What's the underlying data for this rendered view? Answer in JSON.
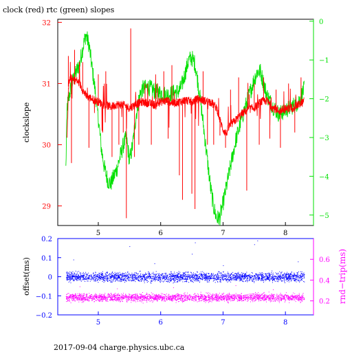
{
  "title": "clock (red) rtc (green) slopes",
  "footer": "2017-09-04 charge.physics.ubc.ca",
  "colors": {
    "clock": "#ff0000",
    "rtc": "#00e000",
    "offset": "#0000ff",
    "rndtrip": "#ff00ff",
    "axis": "#000000",
    "bottom_axis_text": "#0000ff"
  },
  "chart_data": [
    {
      "type": "line",
      "title": "clock (red) rtc (green) slopes",
      "xlim": [
        4.35,
        8.45
      ],
      "x_ticks": [
        5,
        6,
        7,
        8
      ],
      "x_tick_labels": [
        "5",
        "6",
        "7",
        "8"
      ],
      "ylabel": "clockslope",
      "ylim": [
        28.68,
        32.05
      ],
      "y_ticks": [
        29,
        30,
        31,
        32
      ],
      "y_tick_labels": [
        "29",
        "30",
        "31",
        "32"
      ],
      "y2lim": [
        -5.27,
        0.05
      ],
      "y2_ticks": [
        0,
        -1,
        -2,
        -3,
        -4,
        -5
      ],
      "y2_tick_labels": [
        "0",
        "−1",
        "−2",
        "−3",
        "−4",
        "−5"
      ],
      "series": [
        {
          "axis": "left",
          "points": [
            [
              4.5,
              30.05
            ],
            [
              4.52,
              30.95
            ],
            [
              4.55,
              31.1
            ],
            [
              4.6,
              31.05
            ],
            [
              4.65,
              31.05
            ],
            [
              4.7,
              31.0
            ],
            [
              4.75,
              30.9
            ],
            [
              4.8,
              30.8
            ],
            [
              4.9,
              30.75
            ],
            [
              5.0,
              30.7
            ],
            [
              5.1,
              30.65
            ],
            [
              5.2,
              30.62
            ],
            [
              5.3,
              30.66
            ],
            [
              5.4,
              30.65
            ],
            [
              5.5,
              30.6
            ],
            [
              5.6,
              30.66
            ],
            [
              5.7,
              30.7
            ],
            [
              5.8,
              30.68
            ],
            [
              5.9,
              30.65
            ],
            [
              6.0,
              30.7
            ],
            [
              6.1,
              30.72
            ],
            [
              6.2,
              30.68
            ],
            [
              6.3,
              30.7
            ],
            [
              6.4,
              30.73
            ],
            [
              6.5,
              30.7
            ],
            [
              6.6,
              30.75
            ],
            [
              6.7,
              30.72
            ],
            [
              6.8,
              30.7
            ],
            [
              6.9,
              30.6
            ],
            [
              6.95,
              30.4
            ],
            [
              7.0,
              30.25
            ],
            [
              7.05,
              30.18
            ],
            [
              7.1,
              30.3
            ],
            [
              7.2,
              30.4
            ],
            [
              7.3,
              30.5
            ],
            [
              7.4,
              30.58
            ],
            [
              7.5,
              30.6
            ],
            [
              7.6,
              30.7
            ],
            [
              7.7,
              30.72
            ],
            [
              7.8,
              30.6
            ],
            [
              7.9,
              30.55
            ],
            [
              8.0,
              30.58
            ],
            [
              8.1,
              30.6
            ],
            [
              8.2,
              30.65
            ],
            [
              8.3,
              30.7
            ]
          ],
          "spikes": [
            [
              4.52,
              31.45
            ],
            [
              4.57,
              29.7
            ],
            [
              4.62,
              31.55
            ],
            [
              4.75,
              31.35
            ],
            [
              4.85,
              29.95
            ],
            [
              5.0,
              31.15
            ],
            [
              5.07,
              30.2
            ],
            [
              5.12,
              31.2
            ],
            [
              5.22,
              29.8
            ],
            [
              5.33,
              30.0
            ],
            [
              5.4,
              30.2
            ],
            [
              5.45,
              28.8
            ],
            [
              5.52,
              31.9
            ],
            [
              5.58,
              29.8
            ],
            [
              5.65,
              30.0
            ],
            [
              5.75,
              31.0
            ],
            [
              5.85,
              30.0
            ],
            [
              5.95,
              31.0
            ],
            [
              6.05,
              31.2
            ],
            [
              6.12,
              30.1
            ],
            [
              6.18,
              31.3
            ],
            [
              6.3,
              29.5
            ],
            [
              6.35,
              29.1
            ],
            [
              6.5,
              29.2
            ],
            [
              6.55,
              28.95
            ],
            [
              6.68,
              31.2
            ],
            [
              6.75,
              30.0
            ],
            [
              6.85,
              30.0
            ],
            [
              6.95,
              30.15
            ],
            [
              7.04,
              29.95
            ],
            [
              7.12,
              30.9
            ],
            [
              7.25,
              31.1
            ],
            [
              7.38,
              29.25
            ],
            [
              7.5,
              31.0
            ],
            [
              7.58,
              30.0
            ],
            [
              7.65,
              31.1
            ],
            [
              7.75,
              30.1
            ],
            [
              7.85,
              30.9
            ],
            [
              7.92,
              29.95
            ],
            [
              8.05,
              31.0
            ],
            [
              8.15,
              30.2
            ],
            [
              8.25,
              31.1
            ]
          ]
        },
        {
          "axis": "right",
          "points": [
            [
              4.48,
              -3.8
            ],
            [
              4.5,
              -2.2
            ],
            [
              4.55,
              -1.8
            ],
            [
              4.6,
              -1.5
            ],
            [
              4.7,
              -1.1
            ],
            [
              4.75,
              -0.7
            ],
            [
              4.8,
              -0.35
            ],
            [
              4.85,
              -0.6
            ],
            [
              4.9,
              -1.2
            ],
            [
              4.95,
              -1.8
            ],
            [
              5.0,
              -2.5
            ],
            [
              5.05,
              -3.3
            ],
            [
              5.1,
              -3.8
            ],
            [
              5.15,
              -4.1
            ],
            [
              5.2,
              -4.2
            ],
            [
              5.25,
              -4.0
            ],
            [
              5.3,
              -3.8
            ],
            [
              5.35,
              -3.5
            ],
            [
              5.4,
              -3.2
            ],
            [
              5.45,
              -3.0
            ],
            [
              5.5,
              -3.6
            ],
            [
              5.55,
              -3.2
            ],
            [
              5.6,
              -2.5
            ],
            [
              5.65,
              -2.0
            ],
            [
              5.7,
              -1.75
            ],
            [
              5.8,
              -1.7
            ],
            [
              5.9,
              -1.8
            ],
            [
              6.0,
              -1.85
            ],
            [
              6.1,
              -1.9
            ],
            [
              6.2,
              -1.85
            ],
            [
              6.3,
              -1.8
            ],
            [
              6.35,
              -1.6
            ],
            [
              6.4,
              -1.3
            ],
            [
              6.45,
              -1.0
            ],
            [
              6.5,
              -0.95
            ],
            [
              6.55,
              -1.1
            ],
            [
              6.6,
              -1.6
            ],
            [
              6.65,
              -2.2
            ],
            [
              6.7,
              -2.9
            ],
            [
              6.75,
              -3.6
            ],
            [
              6.8,
              -4.3
            ],
            [
              6.85,
              -4.8
            ],
            [
              6.9,
              -5.1
            ],
            [
              6.95,
              -5.05
            ],
            [
              7.0,
              -4.7
            ],
            [
              7.05,
              -4.3
            ],
            [
              7.1,
              -3.9
            ],
            [
              7.15,
              -3.5
            ],
            [
              7.2,
              -3.1
            ],
            [
              7.3,
              -2.5
            ],
            [
              7.4,
              -2.0
            ],
            [
              7.5,
              -1.5
            ],
            [
              7.55,
              -1.3
            ],
            [
              7.6,
              -1.3
            ],
            [
              7.65,
              -1.6
            ],
            [
              7.7,
              -1.9
            ],
            [
              7.8,
              -2.2
            ],
            [
              7.9,
              -2.4
            ],
            [
              8.0,
              -2.3
            ],
            [
              8.1,
              -2.2
            ],
            [
              8.2,
              -2.1
            ],
            [
              8.3,
              -1.75
            ]
          ]
        }
      ]
    },
    {
      "type": "scatter",
      "xlim": [
        4.35,
        8.45
      ],
      "x_ticks": [
        5,
        6,
        7,
        8
      ],
      "x_tick_labels": [
        "5",
        "6",
        "7",
        "8"
      ],
      "ylabel": "offset(ms)",
      "ylim": [
        -0.2,
        0.2
      ],
      "y_ticks": [
        0.2,
        0.1,
        0,
        -0.1,
        -0.2
      ],
      "y_tick_labels": [
        "0.2",
        "0.1",
        "0",
        "−0.1",
        "−0.2"
      ],
      "y2label": "rnd−trip(ms)",
      "y2lim": [
        0.065,
        0.8
      ],
      "y2_ticks": [
        0.6,
        0.4,
        0.2
      ],
      "y2_tick_labels": [
        "0.6",
        "0.4",
        "0.2"
      ],
      "series": [
        {
          "axis": "left",
          "x_range": [
            4.48,
            8.3
          ],
          "center": 0.0,
          "spread": 0.022,
          "outliers": [
            [
              4.6,
              0.09
            ],
            [
              5.5,
              0.16
            ],
            [
              5.9,
              0.07
            ],
            [
              6.5,
              0.12
            ],
            [
              6.55,
              0.18
            ],
            [
              7.0,
              0.06
            ],
            [
              7.5,
              0.17
            ],
            [
              7.55,
              0.19
            ],
            [
              8.2,
              0.08
            ]
          ]
        },
        {
          "axis": "right",
          "x_range": [
            4.48,
            8.3
          ],
          "center": 0.235,
          "spread": 0.035,
          "outliers": [
            [
              4.7,
              0.34
            ],
            [
              5.3,
              0.32
            ],
            [
              6.2,
              0.33
            ],
            [
              7.2,
              0.35
            ],
            [
              7.8,
              0.31
            ]
          ]
        }
      ]
    }
  ]
}
